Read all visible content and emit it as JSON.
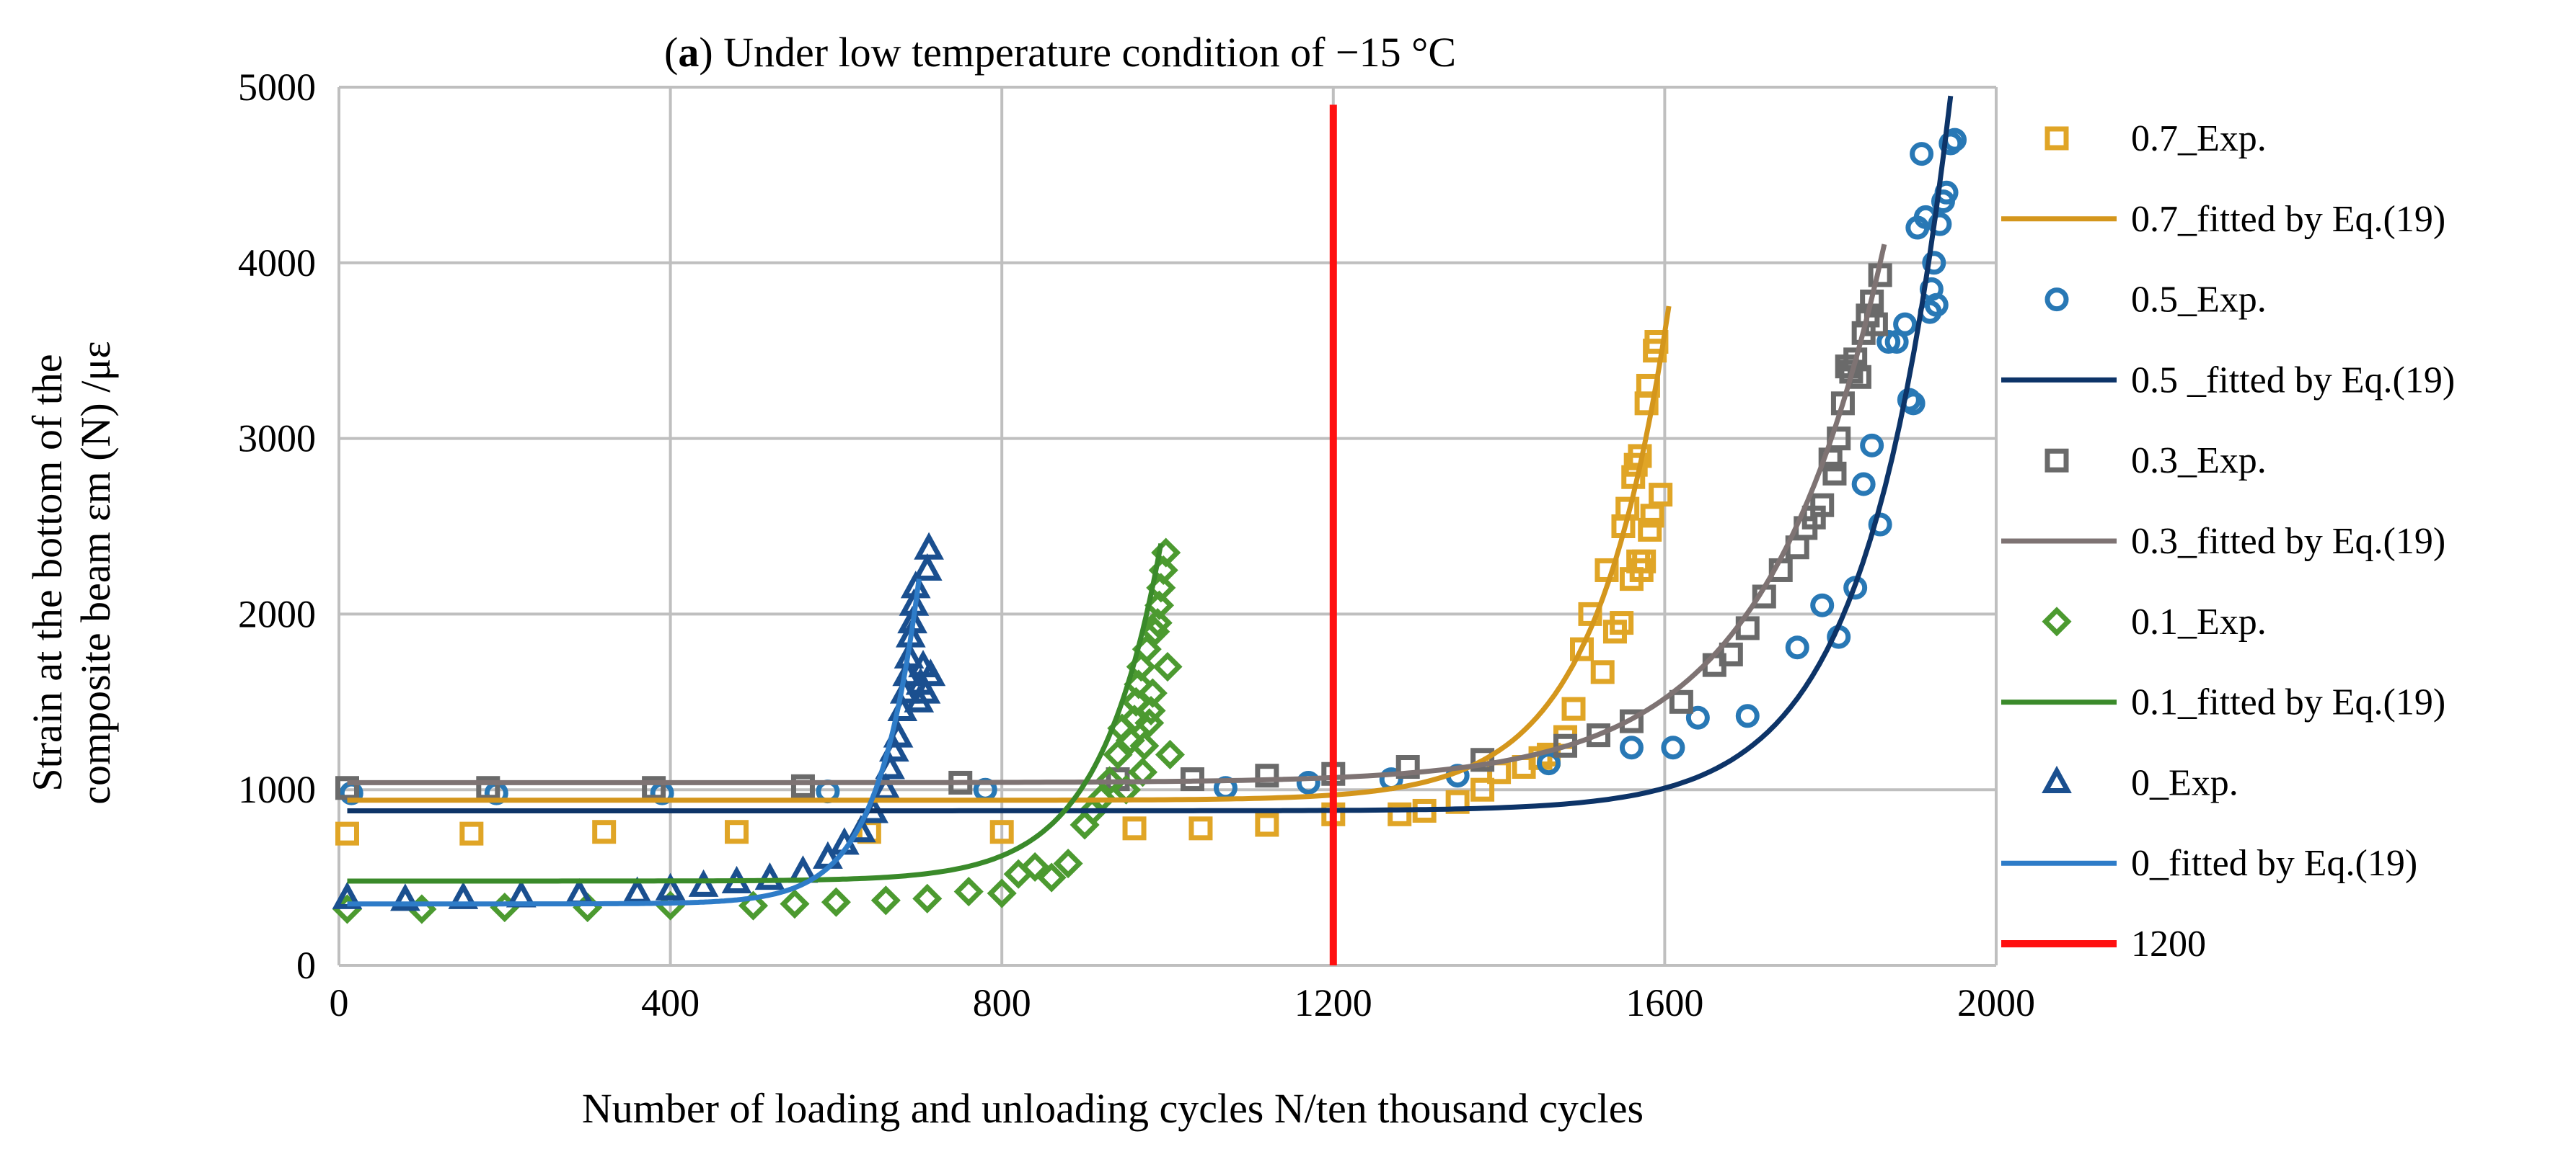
{
  "chart_data": {
    "type": "line",
    "title": {
      "prefix": "(",
      "bold": "a",
      "rest": ") Under low temperature condition of −15 °C"
    },
    "xlabel": "Number of loading and unloading cycles N/ten thousand cycles",
    "ylabel_line1": "Strain at the bottom of the",
    "ylabel_line2": "composite beam εm (N) /με",
    "xlim": [
      0,
      2000
    ],
    "ylim": [
      0,
      5000
    ],
    "xticks": [
      0,
      400,
      800,
      1200,
      1600,
      2000
    ],
    "yticks": [
      0,
      1000,
      2000,
      3000,
      4000,
      5000
    ],
    "grid": true,
    "legend_position": "right",
    "colors": {
      "s07": "#E0A526",
      "f07": "#D4961C",
      "s05": "#2878B5",
      "f05": "#0D3468",
      "s03": "#6A6A6A",
      "f03": "#7E7373",
      "s01": "#4C9A30",
      "f01": "#3A8A2A",
      "s00": "#1A4F8F",
      "f00": "#2E7CC8",
      "ref": "#FF1010"
    },
    "series": [
      {
        "name": "0.7_Exp.",
        "kind": "scatter",
        "marker": "square",
        "color_key": "s07",
        "points": [
          [
            10,
            750
          ],
          [
            160,
            750
          ],
          [
            320,
            760
          ],
          [
            480,
            760
          ],
          [
            640,
            760
          ],
          [
            800,
            760
          ],
          [
            960,
            780
          ],
          [
            1040,
            780
          ],
          [
            1120,
            800
          ],
          [
            1200,
            860
          ],
          [
            1280,
            860
          ],
          [
            1310,
            880
          ],
          [
            1350,
            930
          ],
          [
            1380,
            1000
          ],
          [
            1400,
            1100
          ],
          [
            1430,
            1130
          ],
          [
            1450,
            1180
          ],
          [
            1460,
            1200
          ],
          [
            1480,
            1300
          ],
          [
            1490,
            1460
          ],
          [
            1500,
            1800
          ],
          [
            1510,
            2000
          ],
          [
            1525,
            1670
          ],
          [
            1530,
            2250
          ],
          [
            1540,
            1900
          ],
          [
            1548,
            1950
          ],
          [
            1550,
            2500
          ],
          [
            1555,
            2600
          ],
          [
            1560,
            2200
          ],
          [
            1562,
            2780
          ],
          [
            1565,
            2850
          ],
          [
            1568,
            2300
          ],
          [
            1570,
            2900
          ],
          [
            1572,
            2250
          ],
          [
            1575,
            2300
          ],
          [
            1578,
            3200
          ],
          [
            1580,
            3300
          ],
          [
            1582,
            2480
          ],
          [
            1585,
            2560
          ],
          [
            1588,
            3500
          ],
          [
            1590,
            3550
          ],
          [
            1595,
            2680
          ]
        ]
      },
      {
        "name": "0.7_fitted by Eq.(19)",
        "kind": "line",
        "color_key": "f07",
        "fit": {
          "a": 940,
          "b": 0.0112,
          "xc": 1600,
          "y1": 3600,
          "x0": 10,
          "x1": 1605
        }
      },
      {
        "name": "0.5_Exp.",
        "kind": "scatter",
        "marker": "circle",
        "color_key": "s05",
        "points": [
          [
            15,
            980
          ],
          [
            190,
            980
          ],
          [
            390,
            980
          ],
          [
            590,
            990
          ],
          [
            780,
            1000
          ],
          [
            1070,
            1010
          ],
          [
            1170,
            1040
          ],
          [
            1270,
            1060
          ],
          [
            1350,
            1080
          ],
          [
            1460,
            1150
          ],
          [
            1560,
            1240
          ],
          [
            1610,
            1240
          ],
          [
            1640,
            1410
          ],
          [
            1700,
            1420
          ],
          [
            1760,
            1810
          ],
          [
            1790,
            2050
          ],
          [
            1810,
            1870
          ],
          [
            1830,
            2150
          ],
          [
            1840,
            2740
          ],
          [
            1850,
            2960
          ],
          [
            1860,
            2510
          ],
          [
            1870,
            3550
          ],
          [
            1880,
            3550
          ],
          [
            1890,
            3650
          ],
          [
            1895,
            3220
          ],
          [
            1900,
            3200
          ],
          [
            1905,
            4200
          ],
          [
            1910,
            4620
          ],
          [
            1915,
            4260
          ],
          [
            1920,
            3720
          ],
          [
            1922,
            3850
          ],
          [
            1925,
            4000
          ],
          [
            1928,
            3760
          ],
          [
            1932,
            4220
          ],
          [
            1936,
            4350
          ],
          [
            1940,
            4400
          ],
          [
            1945,
            4680
          ],
          [
            1950,
            4700
          ]
        ]
      },
      {
        "name": "0.5 _fitted by Eq.(19)",
        "kind": "line",
        "color_key": "f05",
        "fit": {
          "a": 880,
          "b": 0.01,
          "xc": 1945,
          "y1": 4950,
          "x0": 10,
          "x1": 1945
        }
      },
      {
        "name": "0.3_Exp.",
        "kind": "scatter",
        "marker": "square",
        "color_key": "s03",
        "points": [
          [
            10,
            1010
          ],
          [
            180,
            1010
          ],
          [
            380,
            1010
          ],
          [
            560,
            1020
          ],
          [
            750,
            1040
          ],
          [
            940,
            1060
          ],
          [
            1030,
            1060
          ],
          [
            1120,
            1080
          ],
          [
            1200,
            1090
          ],
          [
            1290,
            1130
          ],
          [
            1380,
            1170
          ],
          [
            1480,
            1250
          ],
          [
            1520,
            1310
          ],
          [
            1560,
            1390
          ],
          [
            1620,
            1500
          ],
          [
            1660,
            1710
          ],
          [
            1680,
            1770
          ],
          [
            1700,
            1920
          ],
          [
            1720,
            2100
          ],
          [
            1740,
            2250
          ],
          [
            1760,
            2380
          ],
          [
            1770,
            2490
          ],
          [
            1780,
            2550
          ],
          [
            1790,
            2620
          ],
          [
            1800,
            2880
          ],
          [
            1805,
            2800
          ],
          [
            1810,
            3000
          ],
          [
            1815,
            3200
          ],
          [
            1820,
            3410
          ],
          [
            1825,
            3380
          ],
          [
            1830,
            3450
          ],
          [
            1835,
            3350
          ],
          [
            1840,
            3600
          ],
          [
            1845,
            3700
          ],
          [
            1850,
            3780
          ],
          [
            1855,
            3650
          ],
          [
            1860,
            3930
          ]
        ]
      },
      {
        "name": "0.3_fitted by Eq.(19)",
        "kind": "line",
        "color_key": "f03",
        "fit": {
          "a": 1040,
          "b": 0.007,
          "xc": 1860,
          "y1": 4000,
          "x0": 10,
          "x1": 1865
        }
      },
      {
        "name": "0.1_Exp.",
        "kind": "scatter",
        "marker": "diamond",
        "color_key": "s01",
        "points": [
          [
            10,
            320
          ],
          [
            100,
            320
          ],
          [
            200,
            330
          ],
          [
            300,
            330
          ],
          [
            400,
            340
          ],
          [
            500,
            340
          ],
          [
            550,
            350
          ],
          [
            600,
            360
          ],
          [
            660,
            370
          ],
          [
            710,
            380
          ],
          [
            760,
            420
          ],
          [
            800,
            410
          ],
          [
            820,
            520
          ],
          [
            840,
            560
          ],
          [
            860,
            500
          ],
          [
            880,
            580
          ],
          [
            900,
            800
          ],
          [
            910,
            880
          ],
          [
            920,
            950
          ],
          [
            930,
            1050
          ],
          [
            940,
            1200
          ],
          [
            945,
            1350
          ],
          [
            950,
            1000
          ],
          [
            955,
            1280
          ],
          [
            960,
            1400
          ],
          [
            962,
            1500
          ],
          [
            965,
            1600
          ],
          [
            968,
            1700
          ],
          [
            970,
            1100
          ],
          [
            972,
            1250
          ],
          [
            975,
            1800
          ],
          [
            978,
            1380
          ],
          [
            980,
            1450
          ],
          [
            982,
            1550
          ],
          [
            985,
            1900
          ],
          [
            988,
            1950
          ],
          [
            990,
            2050
          ],
          [
            992,
            2150
          ],
          [
            995,
            2250
          ],
          [
            998,
            2350
          ],
          [
            1000,
            1700
          ],
          [
            1003,
            1200
          ]
        ]
      },
      {
        "name": "0.1_fitted by Eq.(19)",
        "kind": "line",
        "color_key": "f01",
        "fit": {
          "a": 480,
          "b": 0.0135,
          "xc": 990,
          "y1": 2350,
          "x0": 10,
          "x1": 992
        }
      },
      {
        "name": "0_Exp.",
        "kind": "scatter",
        "marker": "triangle",
        "color_key": "s00",
        "points": [
          [
            10,
            380
          ],
          [
            80,
            370
          ],
          [
            150,
            380
          ],
          [
            220,
            390
          ],
          [
            290,
            400
          ],
          [
            360,
            410
          ],
          [
            400,
            430
          ],
          [
            440,
            450
          ],
          [
            480,
            470
          ],
          [
            520,
            490
          ],
          [
            560,
            530
          ],
          [
            590,
            610
          ],
          [
            610,
            690
          ],
          [
            630,
            760
          ],
          [
            645,
            870
          ],
          [
            660,
            1000
          ],
          [
            665,
            1120
          ],
          [
            670,
            1220
          ],
          [
            675,
            1300
          ],
          [
            680,
            1450
          ],
          [
            683,
            1550
          ],
          [
            686,
            1650
          ],
          [
            688,
            1750
          ],
          [
            690,
            1870
          ],
          [
            692,
            1950
          ],
          [
            694,
            2050
          ],
          [
            696,
            2150
          ],
          [
            700,
            1500
          ],
          [
            702,
            1600
          ],
          [
            705,
            1700
          ],
          [
            708,
            1550
          ],
          [
            710,
            2250
          ],
          [
            712,
            2370
          ],
          [
            714,
            1650
          ]
        ]
      },
      {
        "name": "0_fitted by Eq.(19)",
        "kind": "line",
        "color_key": "f00",
        "fit": {
          "a": 350,
          "b": 0.02,
          "xc": 700,
          "y1": 2200,
          "x0": 10,
          "x1": 700
        }
      },
      {
        "name": "1200",
        "kind": "vline",
        "color_key": "ref",
        "x": 1200,
        "y0": 0,
        "y1": 4900
      }
    ]
  }
}
